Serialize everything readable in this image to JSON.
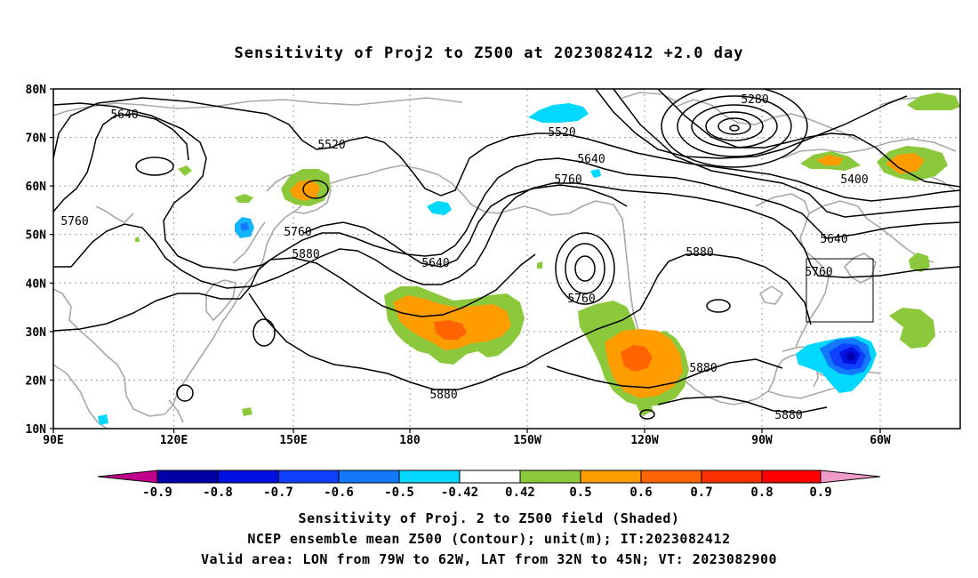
{
  "title": "Sensitivity of Proj2 to Z500 at 2023082412 +2.0 day",
  "map": {
    "lat_labels": [
      "80N",
      "70N",
      "60N",
      "50N",
      "40N",
      "30N",
      "20N",
      "10N"
    ],
    "lon_labels": [
      "90E",
      "120E",
      "150E",
      "180",
      "150W",
      "120W",
      "90W",
      "60W"
    ],
    "lon_range": [
      "90E",
      "40W"
    ],
    "lat_range": [
      "10N",
      "80N"
    ],
    "grid": "dotted",
    "contour_labels": [
      {
        "text": "5640"
      },
      {
        "text": "5520"
      },
      {
        "text": "5280"
      },
      {
        "text": "5520"
      },
      {
        "text": "5640"
      },
      {
        "text": "5760"
      },
      {
        "text": "5400"
      },
      {
        "text": "5760"
      },
      {
        "text": "5760"
      },
      {
        "text": "5880"
      },
      {
        "text": "5640"
      },
      {
        "text": "5640"
      },
      {
        "text": "5880"
      },
      {
        "text": "5760"
      },
      {
        "text": "5760"
      },
      {
        "text": "5880"
      },
      {
        "text": "5880"
      },
      {
        "text": "5880"
      }
    ],
    "valid_area": {
      "lon_from": "79W",
      "lon_to": "62W",
      "lat_from": "32N",
      "lat_to": "45N"
    }
  },
  "colorbar": {
    "labels": [
      "-0.9",
      "-0.8",
      "-0.7",
      "-0.6",
      "-0.5",
      "-0.42",
      "0.42",
      "0.5",
      "0.6",
      "0.7",
      "0.8",
      "0.9"
    ],
    "colors": [
      "#c0008c",
      "#0000a8",
      "#0010e0",
      "#1040ff",
      "#1478ff",
      "#14b4ff",
      "#00d8ff",
      "#ffffff",
      "#8cc83c",
      "#ff9c00",
      "#ff6400",
      "#ff3000",
      "#ff0000",
      "#f09ac8"
    ]
  },
  "captions": {
    "line1": "Sensitivity of Proj. 2 to Z500 field (Shaded)",
    "line2": "NCEP ensemble mean Z500 (Contour); unit(m); IT:2023082412",
    "line3": "Valid area: LON from 79W to 62W, LAT from 32N to 45N; VT: 2023082900"
  }
}
